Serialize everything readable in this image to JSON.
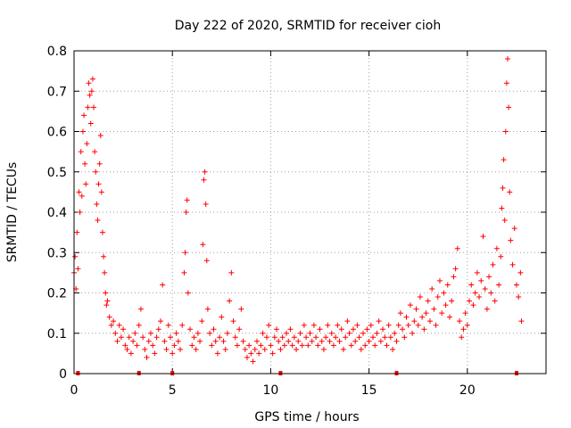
{
  "chart_data": {
    "type": "scatter",
    "title": "Day 222 of 2020, SRMTID for receiver cioh",
    "xlabel": "GPS time / hours",
    "ylabel": "SRMTID / TECUs",
    "xlim": [
      0,
      24
    ],
    "ylim": [
      0,
      0.8
    ],
    "xticks": [
      0,
      5,
      10,
      15,
      20
    ],
    "xtick_labels": [
      "0",
      "5",
      "10",
      "15",
      "20"
    ],
    "yticks": [
      0,
      0.1,
      0.2,
      0.3,
      0.4,
      0.5,
      0.6,
      0.7,
      0.8
    ],
    "ytick_labels": [
      "0",
      "0.1",
      "0.2",
      "0.3",
      "0.4",
      "0.5",
      "0.6",
      "0.7",
      "0.8"
    ],
    "grid": true,
    "marker": "plus",
    "color": "#ff0000",
    "series": [
      {
        "name": "SRMTID",
        "points": [
          [
            0.0,
            0.25
          ],
          [
            0.05,
            0.29
          ],
          [
            0.1,
            0.21
          ],
          [
            0.15,
            0.35
          ],
          [
            0.2,
            0.26
          ],
          [
            0.25,
            0.45
          ],
          [
            0.3,
            0.4
          ],
          [
            0.35,
            0.55
          ],
          [
            0.4,
            0.44
          ],
          [
            0.45,
            0.6
          ],
          [
            0.5,
            0.64
          ],
          [
            0.55,
            0.52
          ],
          [
            0.6,
            0.47
          ],
          [
            0.65,
            0.57
          ],
          [
            0.7,
            0.66
          ],
          [
            0.75,
            0.72
          ],
          [
            0.8,
            0.69
          ],
          [
            0.85,
            0.62
          ],
          [
            0.9,
            0.7
          ],
          [
            0.95,
            0.73
          ],
          [
            1.0,
            0.66
          ],
          [
            1.05,
            0.55
          ],
          [
            1.1,
            0.5
          ],
          [
            1.15,
            0.42
          ],
          [
            1.2,
            0.38
          ],
          [
            1.25,
            0.47
          ],
          [
            1.3,
            0.52
          ],
          [
            1.35,
            0.59
          ],
          [
            1.4,
            0.45
          ],
          [
            1.45,
            0.35
          ],
          [
            1.5,
            0.29
          ],
          [
            1.55,
            0.25
          ],
          [
            1.6,
            0.2
          ],
          [
            1.65,
            0.17
          ],
          [
            1.7,
            0.18
          ],
          [
            1.8,
            0.14
          ],
          [
            1.9,
            0.12
          ],
          [
            2.0,
            0.13
          ],
          [
            2.1,
            0.1
          ],
          [
            2.2,
            0.08
          ],
          [
            2.3,
            0.12
          ],
          [
            2.4,
            0.09
          ],
          [
            2.5,
            0.11
          ],
          [
            2.6,
            0.07
          ],
          [
            2.7,
            0.06
          ],
          [
            2.8,
            0.09
          ],
          [
            2.9,
            0.05
          ],
          [
            3.0,
            0.08
          ],
          [
            3.1,
            0.1
          ],
          [
            3.2,
            0.07
          ],
          [
            3.3,
            0.12
          ],
          [
            3.4,
            0.16
          ],
          [
            3.5,
            0.09
          ],
          [
            3.6,
            0.06
          ],
          [
            3.7,
            0.04
          ],
          [
            3.8,
            0.08
          ],
          [
            3.9,
            0.1
          ],
          [
            4.0,
            0.07
          ],
          [
            4.1,
            0.05
          ],
          [
            4.2,
            0.09
          ],
          [
            4.3,
            0.11
          ],
          [
            4.4,
            0.13
          ],
          [
            4.5,
            0.22
          ],
          [
            4.6,
            0.08
          ],
          [
            4.7,
            0.06
          ],
          [
            4.8,
            0.12
          ],
          [
            4.9,
            0.09
          ],
          [
            5.0,
            0.05
          ],
          [
            5.1,
            0.07
          ],
          [
            5.2,
            0.1
          ],
          [
            5.3,
            0.08
          ],
          [
            5.4,
            0.06
          ],
          [
            5.5,
            0.12
          ],
          [
            5.6,
            0.25
          ],
          [
            5.65,
            0.3
          ],
          [
            5.7,
            0.4
          ],
          [
            5.75,
            0.43
          ],
          [
            5.8,
            0.2
          ],
          [
            5.9,
            0.11
          ],
          [
            6.0,
            0.07
          ],
          [
            6.1,
            0.09
          ],
          [
            6.2,
            0.06
          ],
          [
            6.3,
            0.1
          ],
          [
            6.4,
            0.08
          ],
          [
            6.5,
            0.13
          ],
          [
            6.55,
            0.32
          ],
          [
            6.6,
            0.48
          ],
          [
            6.65,
            0.5
          ],
          [
            6.7,
            0.42
          ],
          [
            6.75,
            0.28
          ],
          [
            6.8,
            0.16
          ],
          [
            6.9,
            0.1
          ],
          [
            7.0,
            0.07
          ],
          [
            7.1,
            0.11
          ],
          [
            7.2,
            0.08
          ],
          [
            7.3,
            0.05
          ],
          [
            7.4,
            0.09
          ],
          [
            7.5,
            0.14
          ],
          [
            7.6,
            0.08
          ],
          [
            7.7,
            0.06
          ],
          [
            7.8,
            0.1
          ],
          [
            7.9,
            0.18
          ],
          [
            8.0,
            0.25
          ],
          [
            8.1,
            0.13
          ],
          [
            8.2,
            0.09
          ],
          [
            8.3,
            0.07
          ],
          [
            8.4,
            0.11
          ],
          [
            8.5,
            0.16
          ],
          [
            8.6,
            0.08
          ],
          [
            8.7,
            0.06
          ],
          [
            8.8,
            0.04
          ],
          [
            8.9,
            0.07
          ],
          [
            9.0,
            0.05
          ],
          [
            9.1,
            0.03
          ],
          [
            9.2,
            0.06
          ],
          [
            9.3,
            0.08
          ],
          [
            9.4,
            0.05
          ],
          [
            9.5,
            0.07
          ],
          [
            9.6,
            0.1
          ],
          [
            9.7,
            0.06
          ],
          [
            9.8,
            0.09
          ],
          [
            9.9,
            0.12
          ],
          [
            10.0,
            0.07
          ],
          [
            10.1,
            0.05
          ],
          [
            10.2,
            0.09
          ],
          [
            10.3,
            0.11
          ],
          [
            10.4,
            0.08
          ],
          [
            10.5,
            0.06
          ],
          [
            10.6,
            0.09
          ],
          [
            10.7,
            0.07
          ],
          [
            10.8,
            0.1
          ],
          [
            10.9,
            0.08
          ],
          [
            11.0,
            0.11
          ],
          [
            11.1,
            0.07
          ],
          [
            11.2,
            0.09
          ],
          [
            11.3,
            0.06
          ],
          [
            11.4,
            0.08
          ],
          [
            11.5,
            0.1
          ],
          [
            11.6,
            0.07
          ],
          [
            11.7,
            0.12
          ],
          [
            11.8,
            0.09
          ],
          [
            11.9,
            0.07
          ],
          [
            12.0,
            0.1
          ],
          [
            12.1,
            0.08
          ],
          [
            12.2,
            0.12
          ],
          [
            12.3,
            0.09
          ],
          [
            12.4,
            0.07
          ],
          [
            12.5,
            0.11
          ],
          [
            12.6,
            0.08
          ],
          [
            12.7,
            0.06
          ],
          [
            12.8,
            0.09
          ],
          [
            12.9,
            0.12
          ],
          [
            13.0,
            0.08
          ],
          [
            13.1,
            0.1
          ],
          [
            13.2,
            0.07
          ],
          [
            13.3,
            0.09
          ],
          [
            13.4,
            0.12
          ],
          [
            13.5,
            0.08
          ],
          [
            13.6,
            0.11
          ],
          [
            13.7,
            0.06
          ],
          [
            13.8,
            0.09
          ],
          [
            13.9,
            0.13
          ],
          [
            14.0,
            0.1
          ],
          [
            14.1,
            0.07
          ],
          [
            14.2,
            0.11
          ],
          [
            14.3,
            0.08
          ],
          [
            14.4,
            0.12
          ],
          [
            14.5,
            0.09
          ],
          [
            14.6,
            0.06
          ],
          [
            14.7,
            0.1
          ],
          [
            14.8,
            0.07
          ],
          [
            14.9,
            0.11
          ],
          [
            15.0,
            0.08
          ],
          [
            15.1,
            0.12
          ],
          [
            15.2,
            0.09
          ],
          [
            15.3,
            0.07
          ],
          [
            15.4,
            0.1
          ],
          [
            15.5,
            0.13
          ],
          [
            15.6,
            0.08
          ],
          [
            15.7,
            0.11
          ],
          [
            15.8,
            0.09
          ],
          [
            15.9,
            0.07
          ],
          [
            16.0,
            0.12
          ],
          [
            16.1,
            0.09
          ],
          [
            16.2,
            0.06
          ],
          [
            16.3,
            0.1
          ],
          [
            16.4,
            0.08
          ],
          [
            16.5,
            0.12
          ],
          [
            16.6,
            0.15
          ],
          [
            16.7,
            0.11
          ],
          [
            16.8,
            0.09
          ],
          [
            16.9,
            0.14
          ],
          [
            17.0,
            0.12
          ],
          [
            17.1,
            0.17
          ],
          [
            17.2,
            0.1
          ],
          [
            17.3,
            0.13
          ],
          [
            17.4,
            0.16
          ],
          [
            17.5,
            0.12
          ],
          [
            17.6,
            0.19
          ],
          [
            17.7,
            0.14
          ],
          [
            17.8,
            0.11
          ],
          [
            17.9,
            0.15
          ],
          [
            18.0,
            0.18
          ],
          [
            18.1,
            0.13
          ],
          [
            18.2,
            0.21
          ],
          [
            18.3,
            0.16
          ],
          [
            18.4,
            0.12
          ],
          [
            18.5,
            0.19
          ],
          [
            18.6,
            0.23
          ],
          [
            18.7,
            0.15
          ],
          [
            18.8,
            0.2
          ],
          [
            18.9,
            0.17
          ],
          [
            19.0,
            0.22
          ],
          [
            19.1,
            0.14
          ],
          [
            19.2,
            0.18
          ],
          [
            19.3,
            0.24
          ],
          [
            19.4,
            0.26
          ],
          [
            19.5,
            0.31
          ],
          [
            19.6,
            0.13
          ],
          [
            19.7,
            0.09
          ],
          [
            19.8,
            0.11
          ],
          [
            19.9,
            0.15
          ],
          [
            20.0,
            0.12
          ],
          [
            20.1,
            0.18
          ],
          [
            20.2,
            0.22
          ],
          [
            20.3,
            0.17
          ],
          [
            20.4,
            0.2
          ],
          [
            20.5,
            0.25
          ],
          [
            20.6,
            0.19
          ],
          [
            20.7,
            0.23
          ],
          [
            20.8,
            0.34
          ],
          [
            20.9,
            0.21
          ],
          [
            21.0,
            0.16
          ],
          [
            21.1,
            0.24
          ],
          [
            21.2,
            0.2
          ],
          [
            21.3,
            0.27
          ],
          [
            21.4,
            0.18
          ],
          [
            21.5,
            0.31
          ],
          [
            21.6,
            0.22
          ],
          [
            21.7,
            0.29
          ],
          [
            21.75,
            0.41
          ],
          [
            21.8,
            0.46
          ],
          [
            21.85,
            0.53
          ],
          [
            21.9,
            0.38
          ],
          [
            21.95,
            0.6
          ],
          [
            22.0,
            0.72
          ],
          [
            22.05,
            0.78
          ],
          [
            22.1,
            0.66
          ],
          [
            22.15,
            0.45
          ],
          [
            22.2,
            0.33
          ],
          [
            22.3,
            0.27
          ],
          [
            22.4,
            0.36
          ],
          [
            22.5,
            0.22
          ],
          [
            22.6,
            0.19
          ],
          [
            22.7,
            0.25
          ],
          [
            22.75,
            0.13
          ]
        ]
      }
    ],
    "baseline_markers_x": [
      0.2,
      3.3,
      5.0,
      10.5,
      16.4,
      22.5
    ]
  }
}
